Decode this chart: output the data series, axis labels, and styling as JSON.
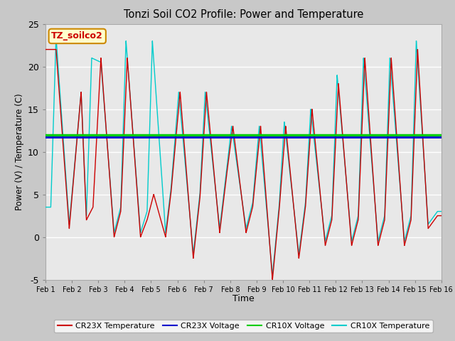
{
  "title": "Tonzi Soil CO2 Profile: Power and Temperature",
  "xlabel": "Time",
  "ylabel": "Power (V) / Temperature (C)",
  "ylim": [
    -5,
    25
  ],
  "xlim": [
    0,
    15
  ],
  "xtick_labels": [
    "Feb 1",
    "Feb 2",
    "Feb 3",
    "Feb 4",
    "Feb 5",
    "Feb 6",
    "Feb 7",
    "Feb 8",
    "Feb 9",
    "Feb 10",
    "Feb 11",
    "Feb 12",
    "Feb 13",
    "Feb 14",
    "Feb 15",
    "Feb 16"
  ],
  "xtick_positions": [
    0,
    1,
    2,
    3,
    4,
    5,
    6,
    7,
    8,
    9,
    10,
    11,
    12,
    13,
    14,
    15
  ],
  "ytick_labels": [
    "-5",
    "0",
    "5",
    "10",
    "15",
    "20",
    "25"
  ],
  "ytick_positions": [
    -5,
    0,
    5,
    10,
    15,
    20,
    25
  ],
  "bg_color": "#e8e8e8",
  "cr23x_voltage": 11.7,
  "cr10x_voltage": 12.0,
  "cr23x_color": "#cc0000",
  "cr10x_color": "#00cccc",
  "cr23x_voltage_color": "#0000cc",
  "cr10x_voltage_color": "#00cc00",
  "annotation_text": "TZ_soilco2",
  "annotation_bg": "#ffffcc",
  "annotation_border": "#cc8800",
  "peaks_cr23x": [
    [
      0.4,
      22
    ],
    [
      0.9,
      1
    ],
    [
      1.35,
      17
    ],
    [
      1.55,
      2
    ],
    [
      1.8,
      3.5
    ],
    [
      2.1,
      21
    ],
    [
      2.6,
      0
    ],
    [
      2.85,
      3
    ],
    [
      3.1,
      21
    ],
    [
      3.6,
      0
    ],
    [
      3.85,
      2
    ],
    [
      4.1,
      5
    ],
    [
      4.55,
      0
    ],
    [
      4.75,
      5
    ],
    [
      5.1,
      17
    ],
    [
      5.6,
      -2.5
    ],
    [
      5.85,
      4.5
    ],
    [
      6.1,
      17
    ],
    [
      6.6,
      0.5
    ],
    [
      6.85,
      7
    ],
    [
      7.1,
      13
    ],
    [
      7.6,
      0.5
    ],
    [
      7.85,
      3.5
    ],
    [
      8.15,
      13
    ],
    [
      8.6,
      -5
    ],
    [
      8.85,
      3
    ],
    [
      9.1,
      13
    ],
    [
      9.6,
      -2.5
    ],
    [
      9.85,
      3.5
    ],
    [
      10.1,
      15
    ],
    [
      10.6,
      -1
    ],
    [
      10.85,
      2
    ],
    [
      11.1,
      18
    ],
    [
      11.6,
      -1
    ],
    [
      11.85,
      2
    ],
    [
      12.1,
      21
    ],
    [
      12.6,
      -1
    ],
    [
      12.85,
      2
    ],
    [
      13.1,
      21
    ],
    [
      13.6,
      -1
    ],
    [
      13.85,
      2
    ],
    [
      14.1,
      22
    ],
    [
      14.5,
      1
    ],
    [
      14.85,
      2.5
    ]
  ],
  "peaks_cr10x": [
    [
      0.2,
      3.5
    ],
    [
      0.4,
      23.5
    ],
    [
      0.9,
      1.5
    ],
    [
      1.35,
      17
    ],
    [
      1.55,
      2.5
    ],
    [
      1.75,
      21
    ],
    [
      2.1,
      20.5
    ],
    [
      2.6,
      0.5
    ],
    [
      2.85,
      3.5
    ],
    [
      3.05,
      23
    ],
    [
      3.6,
      0.5
    ],
    [
      3.85,
      3
    ],
    [
      4.05,
      23
    ],
    [
      4.55,
      0.5
    ],
    [
      4.75,
      5.5
    ],
    [
      5.05,
      17
    ],
    [
      5.6,
      -2
    ],
    [
      5.85,
      5
    ],
    [
      6.05,
      17
    ],
    [
      6.6,
      1
    ],
    [
      6.85,
      7.5
    ],
    [
      7.05,
      13
    ],
    [
      7.6,
      1
    ],
    [
      7.85,
      4
    ],
    [
      8.1,
      13
    ],
    [
      8.6,
      -4.5
    ],
    [
      8.85,
      3.5
    ],
    [
      9.05,
      13.5
    ],
    [
      9.6,
      -2
    ],
    [
      9.85,
      4
    ],
    [
      10.05,
      15
    ],
    [
      10.6,
      -0.5
    ],
    [
      10.85,
      2.5
    ],
    [
      11.05,
      19
    ],
    [
      11.6,
      -0.5
    ],
    [
      11.85,
      2.5
    ],
    [
      12.05,
      21
    ],
    [
      12.6,
      -0.5
    ],
    [
      12.85,
      2.5
    ],
    [
      13.05,
      21
    ],
    [
      13.6,
      -0.5
    ],
    [
      13.85,
      2.5
    ],
    [
      14.05,
      23
    ],
    [
      14.5,
      1.5
    ],
    [
      14.85,
      3
    ]
  ]
}
